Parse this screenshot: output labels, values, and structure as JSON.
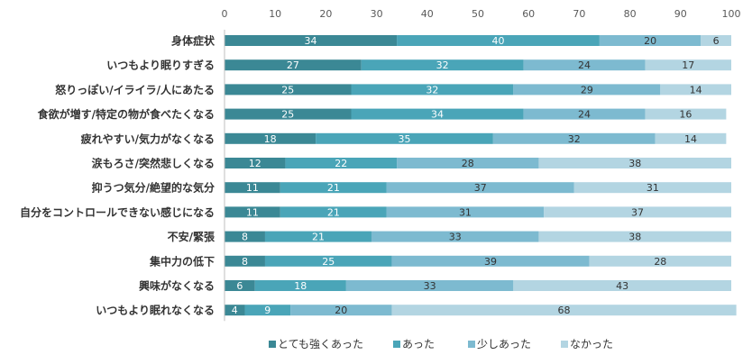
{
  "chart_data": {
    "type": "bar",
    "orientation": "horizontal",
    "stacked": true,
    "xlim": [
      0,
      100
    ],
    "xticks": [
      0,
      10,
      20,
      30,
      40,
      50,
      60,
      70,
      80,
      90,
      100
    ],
    "grid": false,
    "legend_position": "bottom",
    "categories": [
      "身体症状",
      "いつもより眠りすぎる",
      "怒りっぽい/イライラ/人にあたる",
      "食欲が増す/特定の物が食べたくなる",
      "疲れやすい/気力がなくなる",
      "涙もろさ/突然悲しくなる",
      "抑うつ気分/絶望的な気分",
      "自分をコントロールできない感じになる",
      "不安/緊張",
      "集中力の低下",
      "興味がなくなる",
      "いつもより眠れなくなる"
    ],
    "series": [
      {
        "name": "とても強くあった",
        "color": "#3b8895",
        "values": [
          34,
          27,
          25,
          25,
          18,
          12,
          11,
          11,
          8,
          8,
          6,
          4
        ]
      },
      {
        "name": "あった",
        "color": "#4aa5b8",
        "values": [
          40,
          32,
          32,
          34,
          35,
          22,
          21,
          21,
          21,
          25,
          18,
          9
        ]
      },
      {
        "name": "少しあった",
        "color": "#7dbad0",
        "values": [
          20,
          24,
          29,
          24,
          32,
          28,
          37,
          31,
          33,
          39,
          33,
          20
        ]
      },
      {
        "name": "なかった",
        "color": "#b3d5e2",
        "values": [
          6,
          17,
          14,
          16,
          14,
          38,
          31,
          37,
          38,
          28,
          43,
          68
        ]
      }
    ]
  }
}
